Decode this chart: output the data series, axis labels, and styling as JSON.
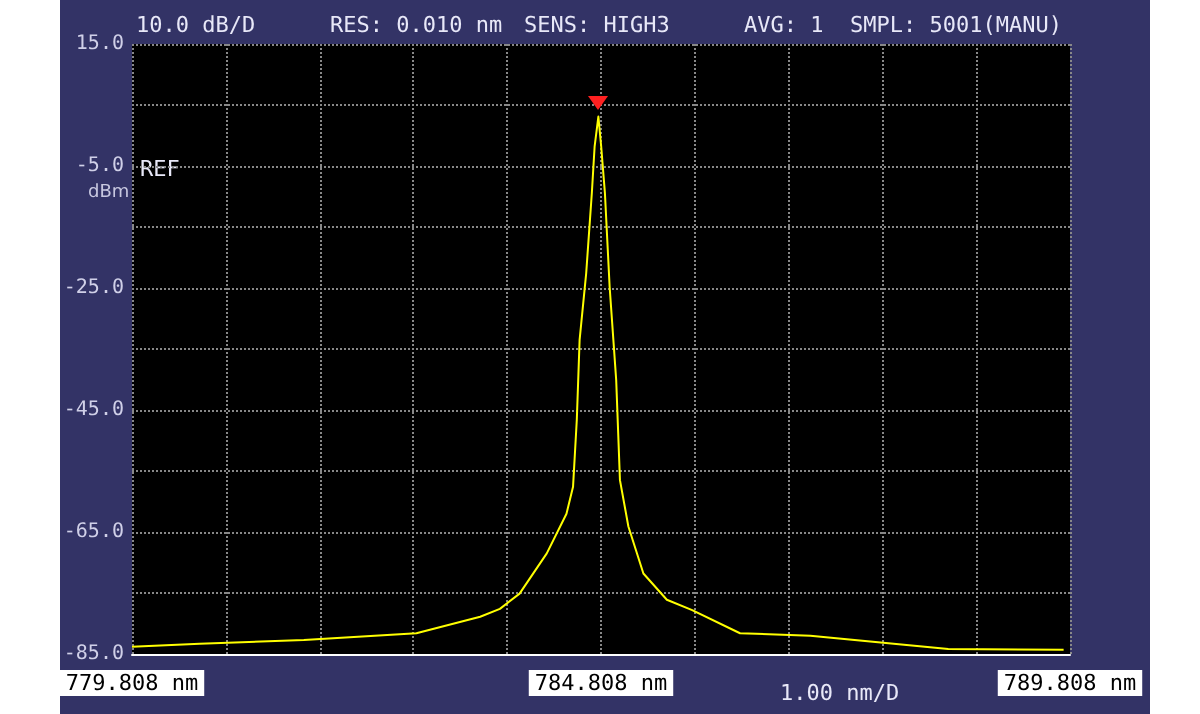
{
  "chart_data": {
    "type": "line",
    "ylabel": "dBm",
    "annotations": [
      "10.0 dB/D",
      "RES: 0.010 nm",
      "SENS: HIGH3",
      "AVG: 1",
      "SMPL: 5001(MANU)",
      "REF",
      "1.00 nm/D"
    ],
    "x": [
      779.808,
      780.53,
      781.64,
      782.84,
      783.52,
      783.73,
      783.94,
      784.23,
      784.44,
      784.51,
      784.55,
      784.58,
      784.65,
      784.71,
      784.74,
      784.78,
      784.81,
      784.85,
      784.9,
      784.97,
      785.01,
      785.1,
      785.26,
      785.51,
      785.78,
      786.29,
      787.04,
      788.51,
      789.74
    ],
    "values": [
      -83.8,
      -83.3,
      -82.7,
      -81.6,
      -78.9,
      -77.6,
      -75.1,
      -68.5,
      -62,
      -57.6,
      -46.6,
      -33.5,
      -22.6,
      -9.5,
      -1.8,
      3.1,
      -1.8,
      -9.5,
      -24.8,
      -40.1,
      -56.5,
      -64.1,
      -71.8,
      -76.1,
      -77.8,
      -81.6,
      -82,
      -84.2,
      -84.3
    ],
    "color": "#ffff00",
    "line_style": "solid",
    "xlim": [
      779.808,
      789.808
    ],
    "ylim": [
      -85,
      15
    ],
    "xticks": [
      {
        "value": 779.808,
        "label": "779.808 nm"
      },
      {
        "value": 780.808,
        "label": null
      },
      {
        "value": 781.808,
        "label": null
      },
      {
        "value": 782.808,
        "label": null
      },
      {
        "value": 783.808,
        "label": null
      },
      {
        "value": 784.808,
        "label": "784.808 nm"
      },
      {
        "value": 785.808,
        "label": null
      },
      {
        "value": 786.808,
        "label": null
      },
      {
        "value": 787.808,
        "label": null
      },
      {
        "value": 788.808,
        "label": null
      },
      {
        "value": 789.808,
        "label": "789.808 nm"
      }
    ],
    "yticks": [
      {
        "value": -85,
        "label": "-85.0"
      },
      {
        "value": -75,
        "label": null
      },
      {
        "value": -65,
        "label": "-65.0"
      },
      {
        "value": -55,
        "label": null
      },
      {
        "value": -45,
        "label": "-45.0"
      },
      {
        "value": -35,
        "label": null
      },
      {
        "value": -25,
        "label": "-25.0"
      },
      {
        "value": -15,
        "label": null
      },
      {
        "value": -5,
        "label": "-5.0"
      },
      {
        "value": 5,
        "label": null
      },
      {
        "value": 15,
        "label": "15.0"
      }
    ],
    "grid": true
  }
}
